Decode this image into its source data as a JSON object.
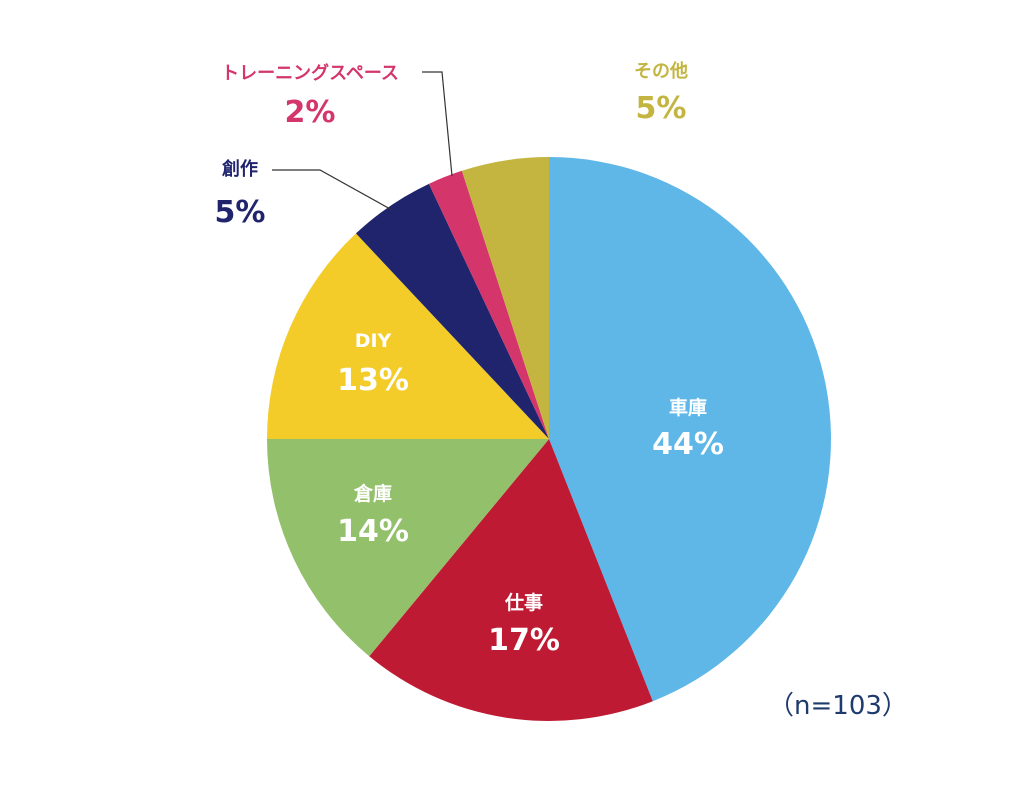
{
  "chart_data": {
    "type": "pie",
    "title": "",
    "note": "（n=103）",
    "slices": [
      {
        "label": "車庫",
        "value": 44,
        "value_label": "44%",
        "color": "#5FB7E8"
      },
      {
        "label": "仕事",
        "value": 17,
        "value_label": "17%",
        "color": "#BF1A33"
      },
      {
        "label": "倉庫",
        "value": 14,
        "value_label": "14%",
        "color": "#93C06B"
      },
      {
        "label": "DIY",
        "value": 13,
        "value_label": "13%",
        "color": "#F3CC2A"
      },
      {
        "label": "創作",
        "value": 5,
        "value_label": "5%",
        "color": "#1F246D"
      },
      {
        "label": "トレーニングスペース",
        "value": 2,
        "value_label": "2%",
        "color": "#D4356A"
      },
      {
        "label": "その他",
        "value": 5,
        "value_label": "5%",
        "color": "#C4B540"
      }
    ],
    "label_color_inside": "#ffffff",
    "note_color": "#1F3B6E"
  }
}
